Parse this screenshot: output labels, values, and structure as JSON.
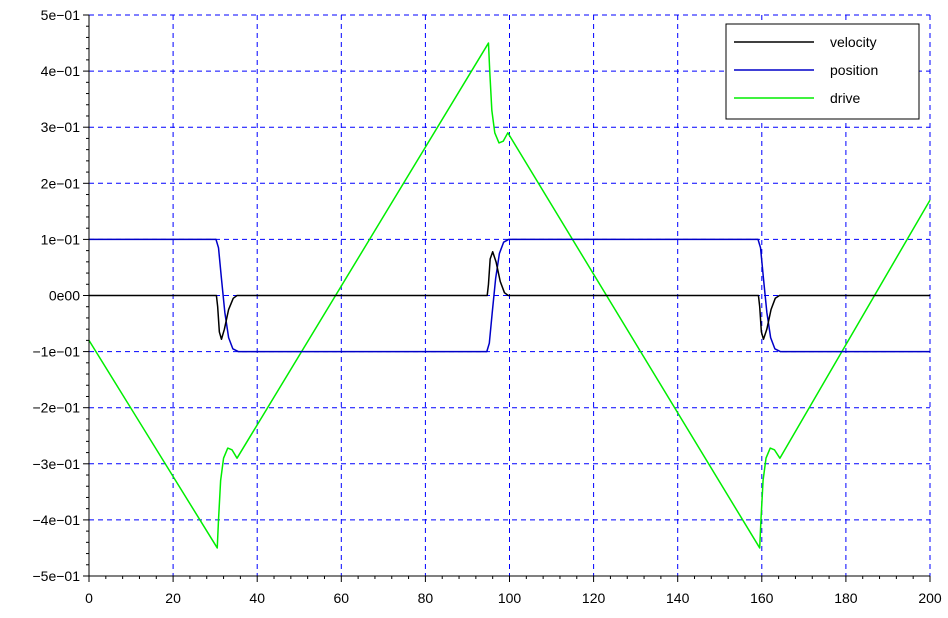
{
  "chart_data": {
    "type": "line",
    "title": "",
    "xlabel": "",
    "ylabel": "",
    "xlim": [
      0,
      200
    ],
    "ylim": [
      -0.5,
      0.5
    ],
    "grid": true,
    "legend_position": "top-right",
    "x_ticks": [
      {
        "value": 0,
        "label": "0"
      },
      {
        "value": 20,
        "label": "20"
      },
      {
        "value": 40,
        "label": "40"
      },
      {
        "value": 60,
        "label": "60"
      },
      {
        "value": 80,
        "label": "80"
      },
      {
        "value": 100,
        "label": "100"
      },
      {
        "value": 120,
        "label": "120"
      },
      {
        "value": 140,
        "label": "140"
      },
      {
        "value": 160,
        "label": "160"
      },
      {
        "value": 180,
        "label": "180"
      },
      {
        "value": 200,
        "label": "200"
      }
    ],
    "y_ticks": [
      {
        "value": 0.5,
        "label": "5e−01"
      },
      {
        "value": 0.4,
        "label": "4e−01"
      },
      {
        "value": 0.3,
        "label": "3e−01"
      },
      {
        "value": 0.2,
        "label": "2e−01"
      },
      {
        "value": 0.1,
        "label": "1e−01"
      },
      {
        "value": 0.0,
        "label": "0e00"
      },
      {
        "value": -0.1,
        "label": "−1e−01"
      },
      {
        "value": -0.2,
        "label": "−2e−01"
      },
      {
        "value": -0.3,
        "label": "−3e−01"
      },
      {
        "value": -0.4,
        "label": "−4e−01"
      },
      {
        "value": -0.5,
        "label": "−5e−01"
      }
    ],
    "series": [
      {
        "name": "velocity",
        "color": "#000000",
        "points": [
          [
            0,
            0
          ],
          [
            30.3,
            0
          ],
          [
            30.6,
            -0.02
          ],
          [
            31,
            -0.065
          ],
          [
            31.5,
            -0.078
          ],
          [
            32.2,
            -0.06
          ],
          [
            33.2,
            -0.025
          ],
          [
            34.3,
            -0.005
          ],
          [
            35.2,
            0
          ],
          [
            94.7,
            0
          ],
          [
            95,
            0.02
          ],
          [
            95.4,
            0.065
          ],
          [
            96,
            0.078
          ],
          [
            96.8,
            0.06
          ],
          [
            97.8,
            0.025
          ],
          [
            98.8,
            0.005
          ],
          [
            99.7,
            0
          ],
          [
            159.2,
            0
          ],
          [
            159.5,
            -0.02
          ],
          [
            159.9,
            -0.065
          ],
          [
            160.4,
            -0.078
          ],
          [
            161.2,
            -0.06
          ],
          [
            162.2,
            -0.025
          ],
          [
            163.2,
            -0.005
          ],
          [
            164.2,
            0
          ],
          [
            200,
            0
          ]
        ]
      },
      {
        "name": "position",
        "color": "#0000c8",
        "points": [
          [
            0,
            0.1
          ],
          [
            30.2,
            0.1
          ],
          [
            30.8,
            0.085
          ],
          [
            31.5,
            0.03
          ],
          [
            32.3,
            -0.03
          ],
          [
            33.2,
            -0.075
          ],
          [
            34.2,
            -0.095
          ],
          [
            35.5,
            -0.1
          ],
          [
            94.6,
            -0.1
          ],
          [
            95.2,
            -0.085
          ],
          [
            95.9,
            -0.03
          ],
          [
            96.7,
            0.03
          ],
          [
            97.6,
            0.075
          ],
          [
            98.6,
            0.095
          ],
          [
            99.8,
            0.1
          ],
          [
            159.1,
            0.1
          ],
          [
            159.7,
            0.085
          ],
          [
            160.4,
            0.03
          ],
          [
            161.2,
            -0.03
          ],
          [
            162.1,
            -0.075
          ],
          [
            163.1,
            -0.095
          ],
          [
            164.4,
            -0.1
          ],
          [
            200,
            -0.1
          ]
        ]
      },
      {
        "name": "drive",
        "color": "#00ee00",
        "points": [
          [
            0,
            -0.08
          ],
          [
            30.5,
            -0.45
          ],
          [
            30.8,
            -0.4
          ],
          [
            31.3,
            -0.33
          ],
          [
            32,
            -0.29
          ],
          [
            33,
            -0.272
          ],
          [
            34,
            -0.275
          ],
          [
            35.2,
            -0.29
          ],
          [
            95,
            0.45
          ],
          [
            95.3,
            0.4
          ],
          [
            95.8,
            0.33
          ],
          [
            96.5,
            0.29
          ],
          [
            97.5,
            0.272
          ],
          [
            98.5,
            0.275
          ],
          [
            99.6,
            0.29
          ],
          [
            159.5,
            -0.45
          ],
          [
            159.8,
            -0.4
          ],
          [
            160.3,
            -0.33
          ],
          [
            161,
            -0.29
          ],
          [
            162,
            -0.272
          ],
          [
            163,
            -0.275
          ],
          [
            164.3,
            -0.29
          ],
          [
            200,
            0.17
          ]
        ]
      }
    ]
  }
}
